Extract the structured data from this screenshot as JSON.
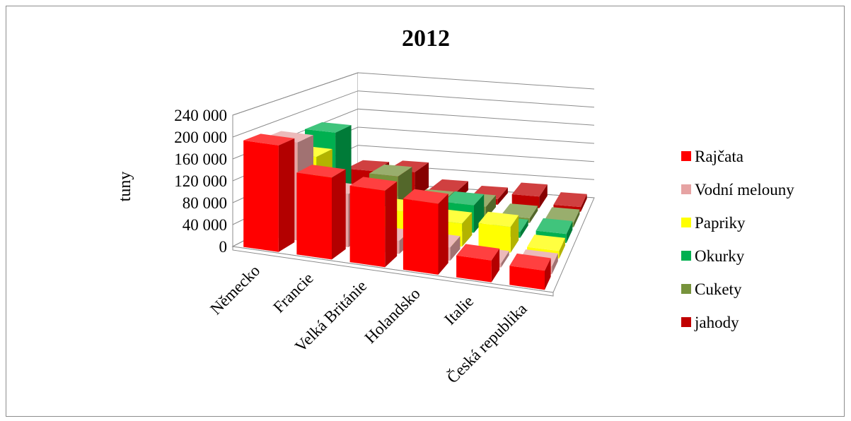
{
  "chart_data": {
    "type": "bar",
    "subtype": "3d-column",
    "title": "2012",
    "xlabel": "",
    "ylabel": "tuny",
    "ylim": [
      0,
      240000
    ],
    "yticks": [
      0,
      40000,
      80000,
      120000,
      160000,
      200000,
      240000
    ],
    "ytick_labels": [
      "0",
      "40 000",
      "80 000",
      "120 000",
      "160 000",
      "200 000",
      "240 000"
    ],
    "categories": [
      "Německo",
      "Francie",
      "Velká Británie",
      "Holandsko",
      "Italie",
      "Česká republika"
    ],
    "grid": true,
    "legend_position": "right",
    "series": [
      {
        "name": "Rajčata",
        "color": "#ff0000",
        "values": [
          195000,
          150000,
          140000,
          130000,
          40000,
          35000
        ]
      },
      {
        "name": "Vodní melouny",
        "color": "#e6a3a3",
        "values": [
          185000,
          100000,
          25000,
          25000,
          8000,
          15000
        ]
      },
      {
        "name": "Papriky",
        "color": "#ffff00",
        "values": [
          140000,
          25000,
          55000,
          45000,
          50000,
          15000
        ]
      },
      {
        "name": "Okurky",
        "color": "#00b050",
        "values": [
          170000,
          30000,
          20000,
          55000,
          12000,
          18000
        ]
      },
      {
        "name": "Cukety",
        "color": "#77933c",
        "values": [
          20000,
          70000,
          25000,
          25000,
          10000,
          10000
        ]
      },
      {
        "name": "jahody",
        "color": "#c00000",
        "values": [
          50000,
          55000,
          20000,
          12000,
          25000,
          10000
        ]
      }
    ]
  }
}
